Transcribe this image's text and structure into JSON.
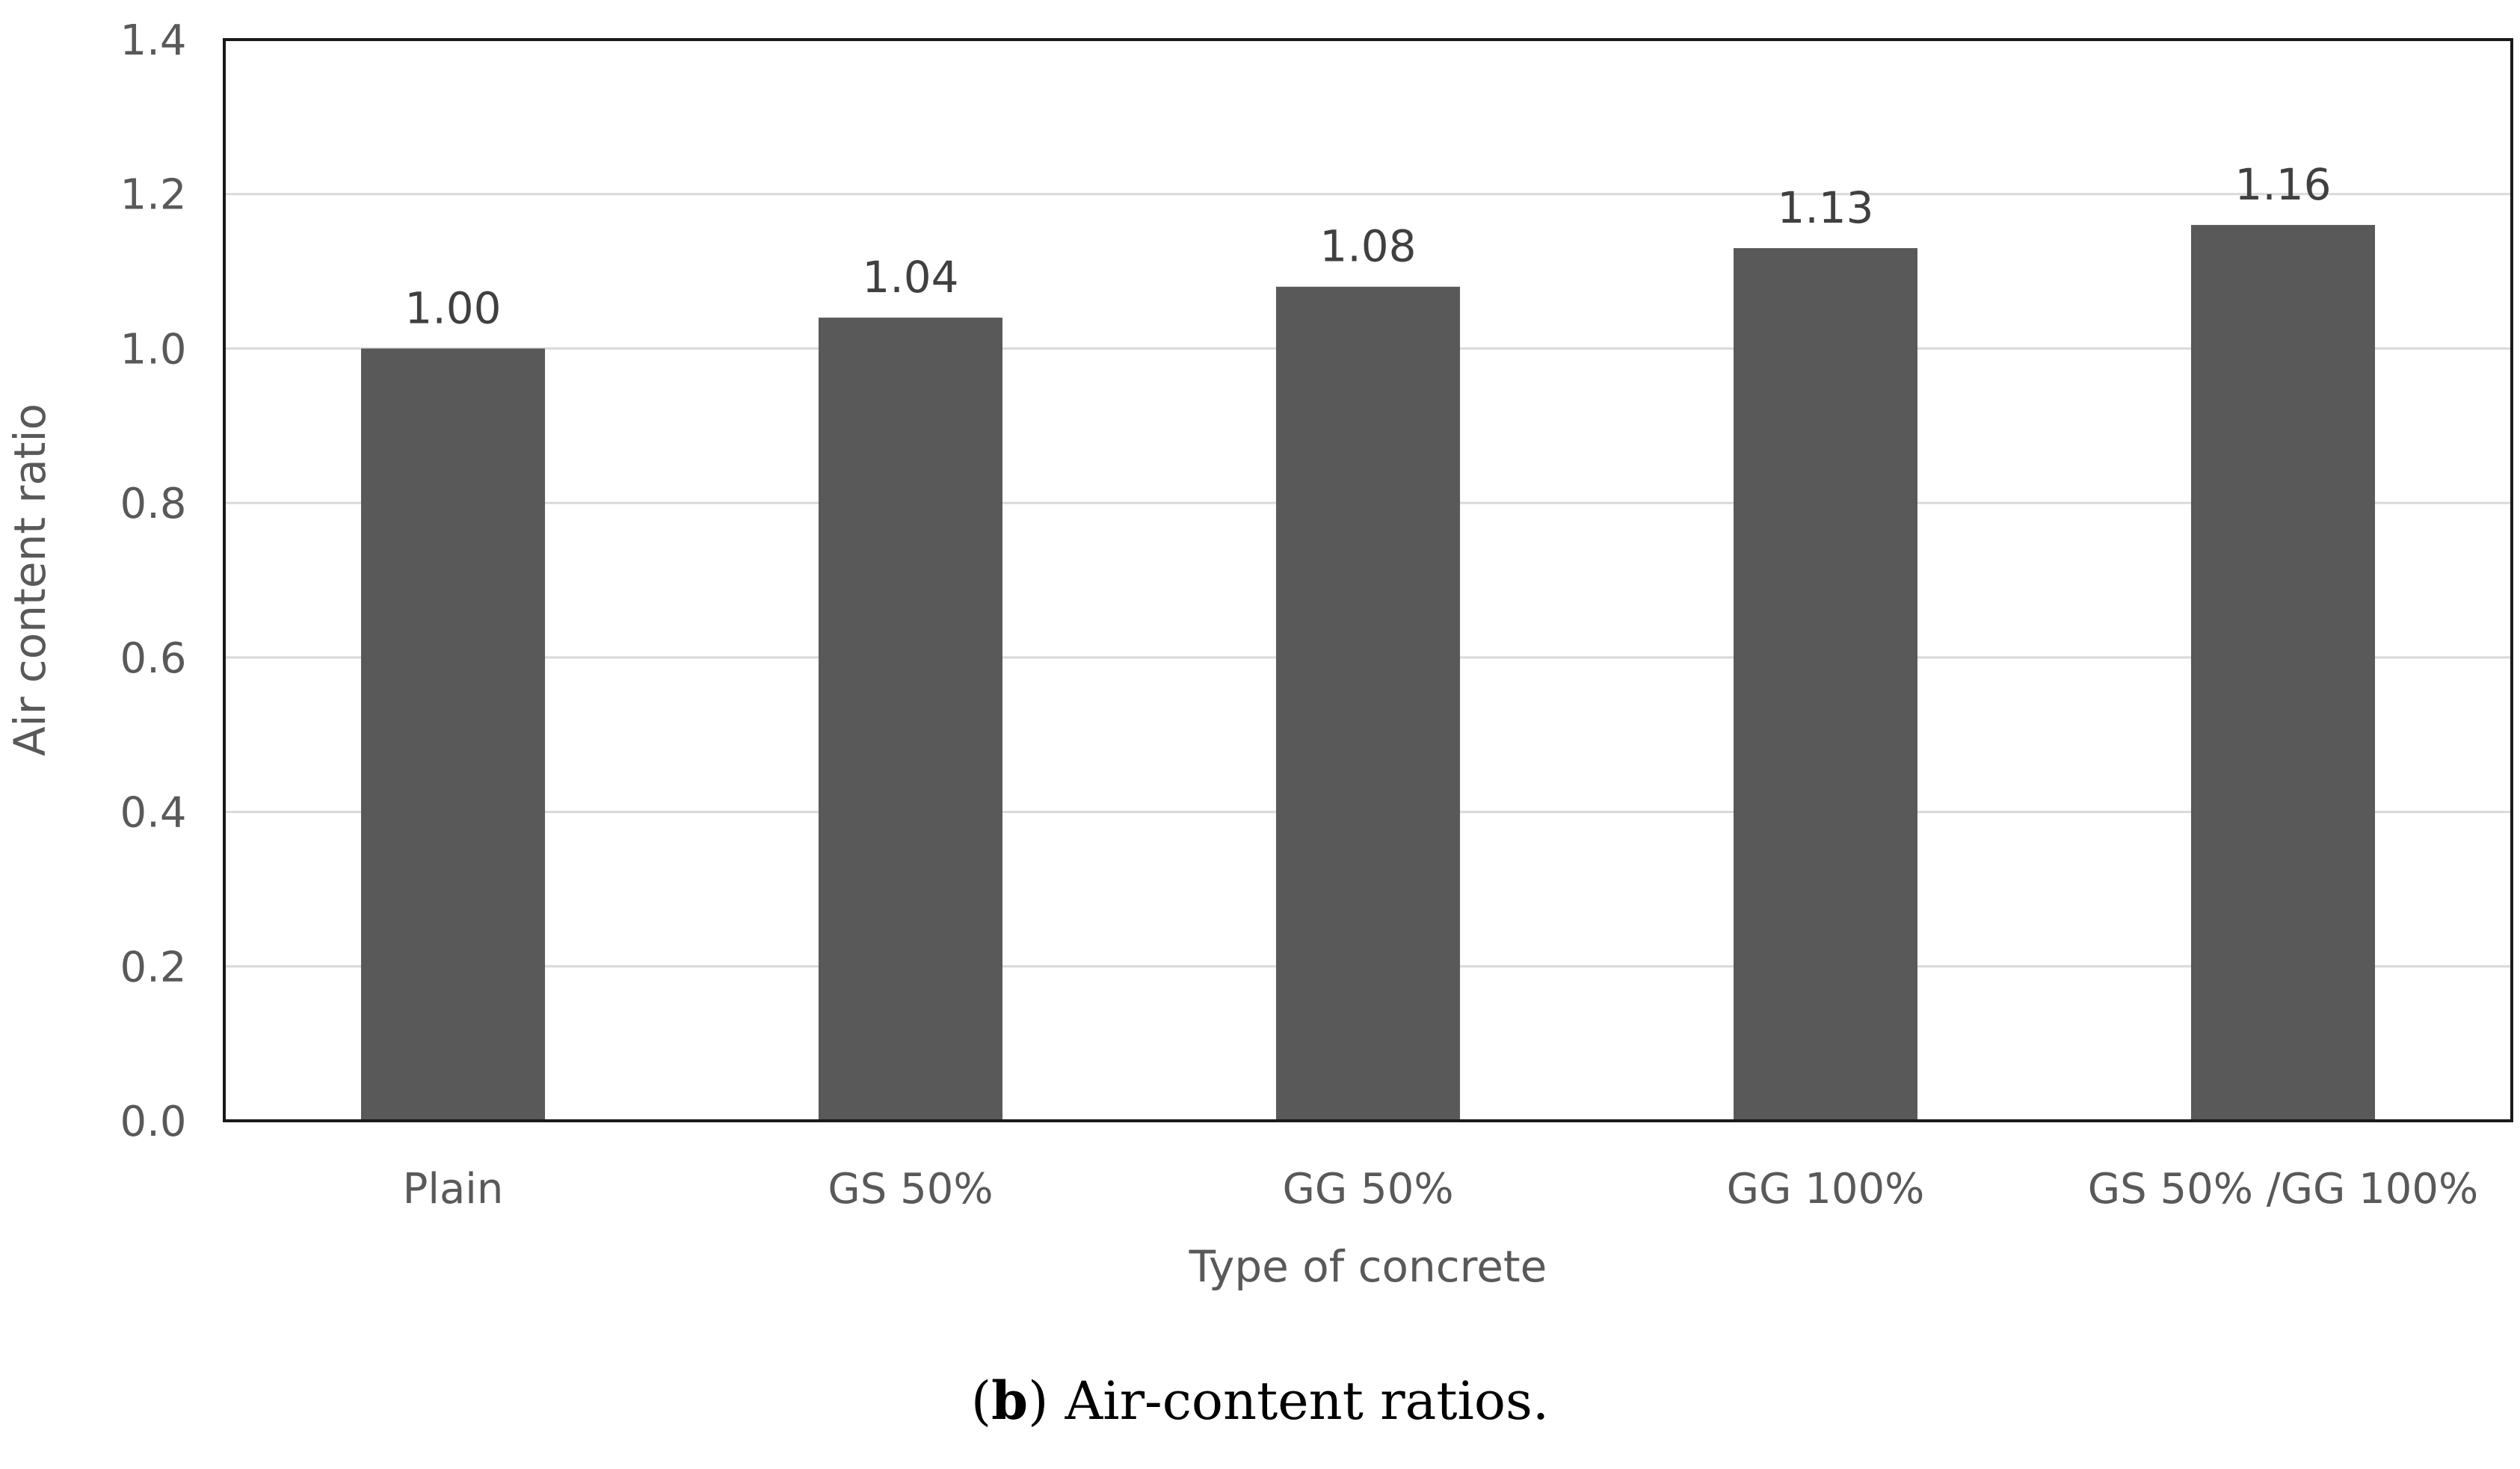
{
  "chart_data": {
    "type": "bar",
    "categories": [
      "Plain",
      "GS 50%",
      "GG 50%",
      "GG 100%",
      "GS 50% /GG 100%"
    ],
    "values": [
      1.0,
      1.04,
      1.08,
      1.13,
      1.16
    ],
    "data_labels": [
      "1.00",
      "1.04",
      "1.08",
      "1.13",
      "1.16"
    ],
    "title": "",
    "xlabel": "Type of concrete",
    "ylabel": "Air content ratio",
    "ylim": [
      0,
      1.4
    ],
    "yticks": [
      "0.0",
      "0.2",
      "0.4",
      "0.6",
      "0.8",
      "1.0",
      "1.2",
      "1.4"
    ],
    "grid": true,
    "bar_color": "#595959"
  },
  "caption": {
    "letter": "b",
    "open": "(",
    "close": ")",
    "text": " Air-content ratios."
  }
}
